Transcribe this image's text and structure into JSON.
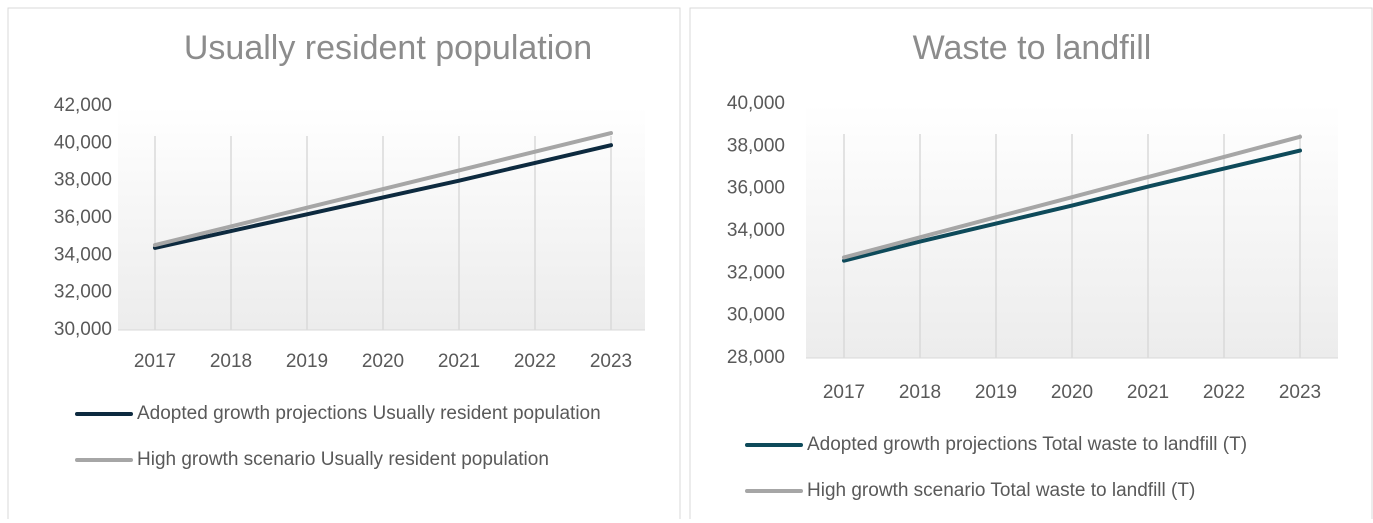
{
  "chart_data": [
    {
      "type": "line",
      "title": "Usually resident population",
      "categories": [
        "2017",
        "2018",
        "2019",
        "2020",
        "2021",
        "2022",
        "2023"
      ],
      "series": [
        {
          "name": "Adopted growth projections Usually resident population",
          "color": "#0d2a3f",
          "values": [
            34400,
            35300,
            36200,
            37100,
            38000,
            38950,
            39900
          ]
        },
        {
          "name": "High growth scenario Usually resident population",
          "color": "#a6a6a6",
          "values": [
            34550,
            35550,
            36550,
            37550,
            38550,
            39550,
            40550
          ]
        }
      ],
      "ylim": [
        30000,
        42000
      ],
      "yticks": [
        {
          "value": 30000,
          "label": "30,000"
        },
        {
          "value": 32000,
          "label": "32,000"
        },
        {
          "value": 34000,
          "label": "34,000"
        },
        {
          "value": 36000,
          "label": "36,000"
        },
        {
          "value": 38000,
          "label": "38,000"
        },
        {
          "value": 40000,
          "label": "40,000"
        },
        {
          "value": 42000,
          "label": "42,000"
        }
      ],
      "legend": "bottom"
    },
    {
      "type": "line",
      "title": "Waste to landfill",
      "categories": [
        "2017",
        "2018",
        "2019",
        "2020",
        "2021",
        "2022",
        "2023"
      ],
      "series": [
        {
          "name": "Adopted growth projections Total waste to landfill (T)",
          "color": "#0e4a5a",
          "values": [
            32600,
            33500,
            34350,
            35200,
            36100,
            36950,
            37800
          ]
        },
        {
          "name": "High growth scenario Total waste to landfill (T)",
          "color": "#a6a6a6",
          "values": [
            32750,
            33700,
            34650,
            35600,
            36550,
            37500,
            38450
          ]
        }
      ],
      "ylim": [
        28000,
        40000
      ],
      "yticks": [
        {
          "value": 28000,
          "label": "28,000"
        },
        {
          "value": 30000,
          "label": "30,000"
        },
        {
          "value": 32000,
          "label": "32,000"
        },
        {
          "value": 34000,
          "label": "34,000"
        },
        {
          "value": 36000,
          "label": "36,000"
        },
        {
          "value": 38000,
          "label": "38,000"
        },
        {
          "value": 40000,
          "label": "40,000"
        }
      ],
      "legend": "bottom"
    }
  ]
}
